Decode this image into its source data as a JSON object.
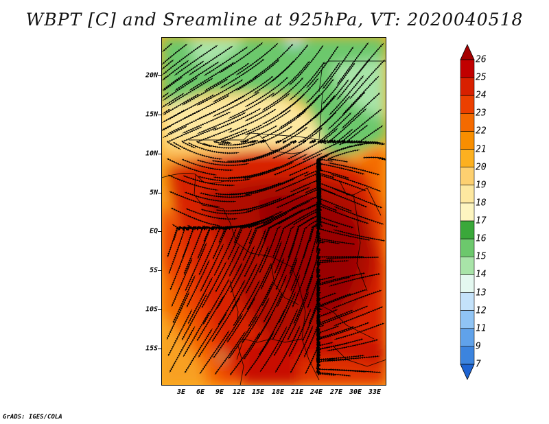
{
  "title": "WBPT [C] and Sreamline at 925hPa, VT: 2020040518",
  "y_axis_labels": [
    "20N",
    "15N",
    "10N",
    "5N",
    "EQ",
    "5S",
    "10S",
    "15S"
  ],
  "x_axis_labels": [
    "3E",
    "6E",
    "9E",
    "12E",
    "15E",
    "18E",
    "21E",
    "24E",
    "27E",
    "30E",
    "33E"
  ],
  "colorbar": {
    "labels": [
      "26",
      "25",
      "24",
      "23",
      "22",
      "21",
      "20",
      "19",
      "18",
      "17",
      "16",
      "15",
      "14",
      "13",
      "12",
      "11",
      "9",
      "7"
    ],
    "colors": [
      "#a50000",
      "#c10000",
      "#d82000",
      "#ec4000",
      "#f46a00",
      "#f88e00",
      "#fcb020",
      "#fdd070",
      "#fde8a0",
      "#fdf5c0",
      "#3aa83a",
      "#6cc86c",
      "#a8e4a8",
      "#e4f8f0",
      "#c4e2fa",
      "#90c4f4",
      "#60a2ea",
      "#3c84de",
      "#1e64d2"
    ]
  },
  "credit": "GrADS: IGES/COLA"
}
